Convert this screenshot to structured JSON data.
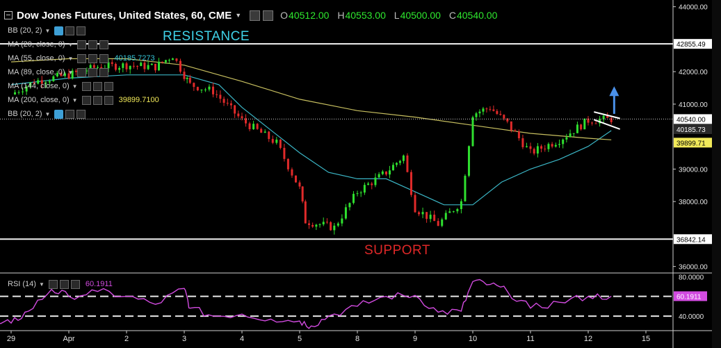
{
  "header": {
    "title": "Dow Jones Futures, United States, 60, CME",
    "o_key": "O",
    "o": "40512.00",
    "h_key": "H",
    "h": "40553.00",
    "l_key": "L",
    "l": "40500.00",
    "c_key": "C",
    "c": "40540.00"
  },
  "indicators": [
    {
      "label": "BB (20, 2)"
    },
    {
      "label": "MA (20, close, 0)"
    },
    {
      "label": "MA (55, close, 0)",
      "value": "40185.7273"
    },
    {
      "label": "MA (89, close, 0)"
    },
    {
      "label": "MA (144, close, 0)"
    },
    {
      "label": "MA (200, close, 0)",
      "value": "39899.7100"
    },
    {
      "label": "BB (20, 2)"
    }
  ],
  "rsi": {
    "label": "RSI (14)",
    "value": "60.1911"
  },
  "annotations": {
    "resistance": "RESISTANCE",
    "support": "SUPPORT"
  },
  "colors": {
    "up": "#2fe02f",
    "down": "#e02a2a",
    "ma55": "#3bb6c6",
    "ma200": "#c8c060",
    "rsi": "#d24be0",
    "resistance": "#3fd2e8",
    "support": "#e02828",
    "arrow": "#4a90e8"
  },
  "chart_data": [
    {
      "type": "candlestick",
      "title": "Dow Jones Futures, United States, 60, CME",
      "ylim": [
        35800,
        44100
      ],
      "y_ticks": [
        "44000.00",
        "42000.00",
        "41000.00",
        "39000.00",
        "38000.00",
        "36000.00"
      ],
      "x_ticks": [
        {
          "label": "29",
          "x": -1.0
        },
        {
          "label": "Apr",
          "x": 0.0
        },
        {
          "label": "2",
          "x": 1.0
        },
        {
          "label": "3",
          "x": 2.0
        },
        {
          "label": "4",
          "x": 3.0
        },
        {
          "label": "5",
          "x": 4.0
        },
        {
          "label": "8",
          "x": 5.0
        },
        {
          "label": "9",
          "x": 6.0
        },
        {
          "label": "10",
          "x": 7.0
        },
        {
          "label": "11",
          "x": 8.0
        },
        {
          "label": "12",
          "x": 9.0
        },
        {
          "label": "15",
          "x": 10.0
        }
      ],
      "last_price": 40540.0,
      "last_price_label": "40540.00",
      "horizontal_lines": [
        {
          "name": "RESISTANCE",
          "value": 42855.49,
          "label": "42855.49"
        },
        {
          "name": "SUPPORT",
          "value": 36842.14,
          "label": "36842.14"
        }
      ],
      "ma_labels": [
        {
          "name": "MA (55, close, 0)",
          "value": 40185.73,
          "label": "40185.73",
          "color": "#3bb6c6"
        },
        {
          "name": "MA (200, close, 0)",
          "value": 39899.71,
          "label": "39899.71",
          "color": "#f2ea5a"
        }
      ],
      "key_closes": [
        {
          "x": -1.0,
          "close": 41300
        },
        {
          "x": -0.6,
          "close": 41700
        },
        {
          "x": 0.0,
          "close": 41900
        },
        {
          "x": 0.5,
          "close": 42150
        },
        {
          "x": 1.0,
          "close": 42200
        },
        {
          "x": 1.5,
          "close": 42150
        },
        {
          "x": 1.8,
          "close": 42500
        },
        {
          "x": 2.0,
          "close": 41900
        },
        {
          "x": 2.1,
          "close": 41600
        },
        {
          "x": 2.5,
          "close": 41400
        },
        {
          "x": 3.0,
          "close": 40500
        },
        {
          "x": 3.6,
          "close": 39800
        },
        {
          "x": 4.0,
          "close": 38400
        },
        {
          "x": 4.1,
          "close": 37400
        },
        {
          "x": 4.6,
          "close": 37200
        },
        {
          "x": 5.0,
          "close": 38300
        },
        {
          "x": 5.5,
          "close": 38900
        },
        {
          "x": 5.8,
          "close": 39400
        },
        {
          "x": 6.0,
          "close": 37800
        },
        {
          "x": 6.4,
          "close": 37300
        },
        {
          "x": 6.8,
          "close": 38000
        },
        {
          "x": 7.0,
          "close": 40700
        },
        {
          "x": 7.3,
          "close": 40900
        },
        {
          "x": 7.6,
          "close": 40400
        },
        {
          "x": 8.0,
          "close": 39500
        },
        {
          "x": 8.5,
          "close": 39900
        },
        {
          "x": 9.0,
          "close": 40500
        },
        {
          "x": 9.4,
          "close": 40540
        }
      ],
      "moving_averages": [
        {
          "name": "MA (55, close, 0)",
          "color": "#3bb6c6",
          "points": [
            [
              -1.0,
              41600
            ],
            [
              0.0,
              41800
            ],
            [
              1.0,
              41900
            ],
            [
              2.0,
              41900
            ],
            [
              2.6,
              41600
            ],
            [
              3.0,
              40900
            ],
            [
              3.5,
              40200
            ],
            [
              4.0,
              39500
            ],
            [
              4.5,
              38900
            ],
            [
              5.0,
              38700
            ],
            [
              5.5,
              38700
            ],
            [
              6.0,
              38300
            ],
            [
              6.5,
              37900
            ],
            [
              7.0,
              37900
            ],
            [
              7.5,
              38600
            ],
            [
              8.0,
              39000
            ],
            [
              8.5,
              39300
            ],
            [
              9.0,
              39700
            ],
            [
              9.4,
              40186
            ]
          ]
        },
        {
          "name": "MA (200, close, 0)",
          "color": "#c8c060",
          "points": [
            [
              -1.0,
              42300
            ],
            [
              0.0,
              42400
            ],
            [
              1.0,
              42400
            ],
            [
              2.0,
              42200
            ],
            [
              3.0,
              41700
            ],
            [
              4.0,
              41150
            ],
            [
              5.0,
              40800
            ],
            [
              6.0,
              40600
            ],
            [
              7.0,
              40350
            ],
            [
              8.0,
              40100
            ],
            [
              9.0,
              39950
            ],
            [
              9.4,
              39900
            ]
          ]
        }
      ]
    },
    {
      "type": "line",
      "title": "RSI (14)",
      "ylim": [
        26,
        83
      ],
      "y_ticks": [
        "80.0000",
        "40.0000"
      ],
      "reference_lines": [
        60,
        40
      ],
      "last_value": 60.1911,
      "series": [
        {
          "name": "RSI (14)",
          "color": "#d24be0",
          "x": [
            -1.3,
            -1.0,
            -0.7,
            -0.3,
            0.0,
            0.5,
            1.0,
            1.5,
            2.0,
            2.1,
            2.5,
            3.0,
            3.5,
            4.0,
            4.2,
            4.5,
            5.0,
            5.5,
            6.0,
            6.4,
            6.8,
            7.0,
            7.3,
            7.6,
            8.0,
            8.5,
            9.0,
            9.4
          ],
          "values": [
            31,
            33,
            45,
            67,
            60,
            65,
            60,
            52,
            68,
            48,
            40,
            42,
            37,
            35,
            30,
            40,
            50,
            60,
            61,
            44,
            45,
            75,
            72,
            65,
            48,
            54,
            60,
            60.19
          ]
        }
      ]
    }
  ]
}
